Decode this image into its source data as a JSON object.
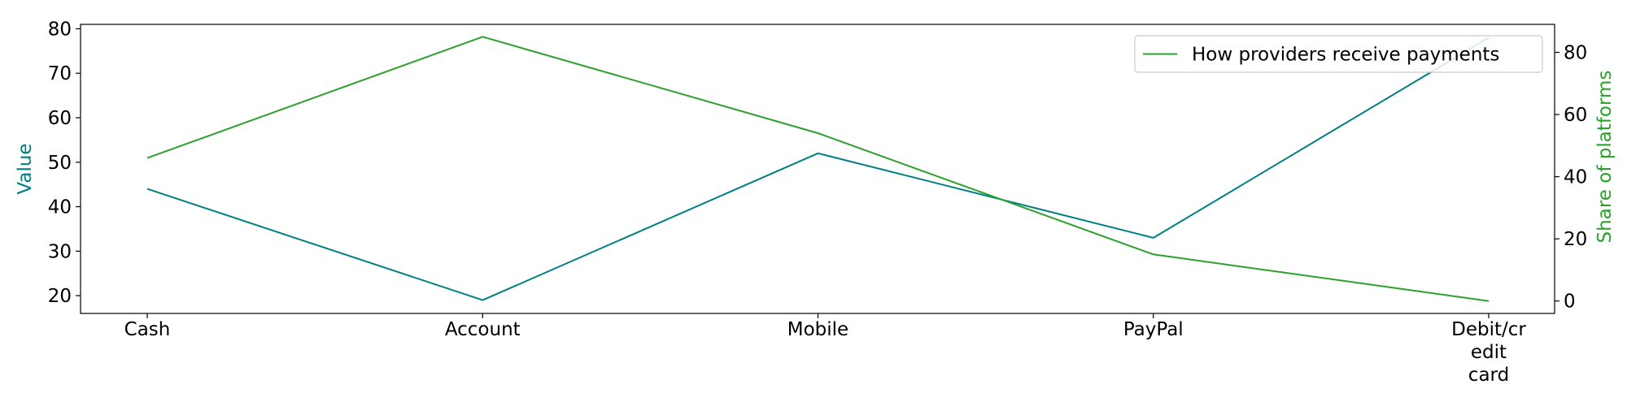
{
  "chart_data": {
    "type": "line",
    "categories": [
      "Cash",
      "Account",
      "Mobile",
      "PayPal",
      "Debit/cr\nedit\ncard"
    ],
    "category_lines": [
      [
        "Cash"
      ],
      [
        "Account"
      ],
      [
        "Mobile"
      ],
      [
        "PayPal"
      ],
      [
        "Debit/cr",
        "edit",
        "card"
      ]
    ],
    "series": [
      {
        "name": "",
        "axis": "left",
        "color": "#008080",
        "values": [
          44,
          19,
          52,
          33,
          78
        ]
      },
      {
        "name": "How providers receive payments",
        "axis": "right",
        "color": "#2ca02c",
        "values": [
          46,
          85,
          54,
          15,
          0
        ]
      }
    ],
    "left_axis": {
      "label": "Value",
      "label_color": "#008080",
      "ylim": [
        16,
        81
      ],
      "ticks": [
        20,
        30,
        40,
        50,
        60,
        70,
        80
      ]
    },
    "right_axis": {
      "label": "Share of platforms",
      "label_color": "#2ca02c",
      "ylim": [
        -4,
        89
      ],
      "ticks": [
        0,
        20,
        40,
        60,
        80
      ]
    },
    "grid": false,
    "legend_placement": "top-right",
    "title": ""
  }
}
